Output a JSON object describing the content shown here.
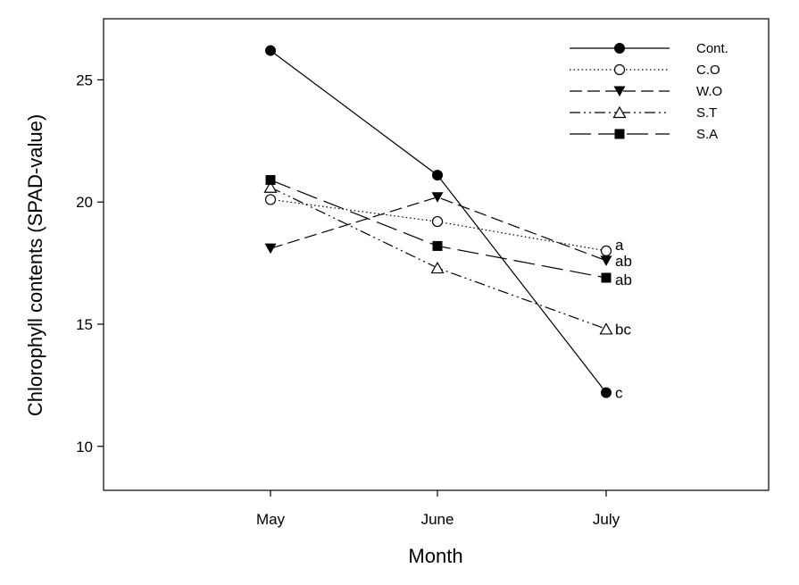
{
  "chart_data": {
    "type": "line",
    "title": "",
    "xlabel": "Month",
    "ylabel": "Chlorophyll contents (SPAD-value)",
    "categories": [
      "May",
      "June",
      "July"
    ],
    "ylim": [
      8.2,
      27.5
    ],
    "yticks": [
      10,
      15,
      20,
      25
    ],
    "grid": false,
    "legend_position": "top-right",
    "series": [
      {
        "name": "Cont.",
        "values": [
          26.2,
          21.1,
          12.2
        ],
        "marker": "filled-circle",
        "dash": "solid",
        "significance": "c"
      },
      {
        "name": "C.O",
        "values": [
          20.1,
          19.2,
          18.0
        ],
        "marker": "open-circle",
        "dash": "dotted",
        "significance": "a"
      },
      {
        "name": "W.O",
        "values": [
          18.1,
          20.2,
          17.6
        ],
        "marker": "filled-triangle-down",
        "dash": "dashed",
        "significance": "ab"
      },
      {
        "name": "S.T",
        "values": [
          20.6,
          17.3,
          14.8
        ],
        "marker": "open-triangle-up",
        "dash": "dash-dot-dot",
        "significance": "bc"
      },
      {
        "name": "S.A",
        "values": [
          20.9,
          18.2,
          16.9
        ],
        "marker": "filled-square",
        "dash": "long-dash",
        "significance": "ab"
      }
    ]
  }
}
